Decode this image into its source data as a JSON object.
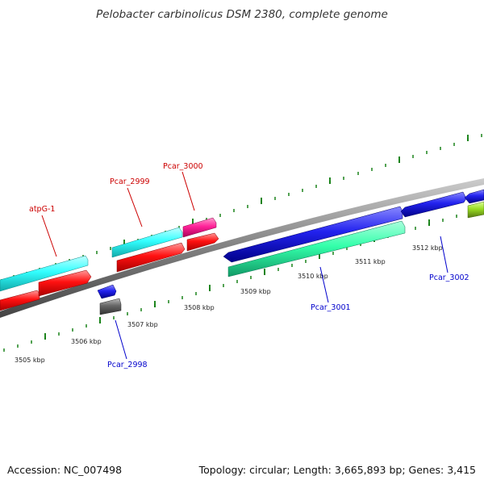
{
  "title": "Pelobacter carbinolicus DSM 2380, complete genome",
  "footer": {
    "accession": "Accession: NC_007498",
    "stats": "Topology: circular; Length: 3,665,893 bp; Genes: 3,415"
  },
  "colors": {
    "backbone": "#808080",
    "tick": "#0a7a0a",
    "forward_label": "#cc0000",
    "reverse_label": "#0000cc",
    "cyan": "#33ffff",
    "red": "#ff1111",
    "magenta": "#ff2299",
    "blue": "#2222ee",
    "gray": "#666666",
    "teal": "#33ffaa",
    "lime": "#99dd22"
  },
  "kbp_ticks": [
    "3505 kbp",
    "3506 kbp",
    "3507 kbp",
    "3508 kbp",
    "3509 kbp",
    "3510 kbp",
    "3511 kbp",
    "3512 kbp"
  ],
  "gene_labels": {
    "atpG_1": "atpG-1",
    "pcar_2999": "Pcar_2999",
    "pcar_3000": "Pcar_3000",
    "pcar_2998": "Pcar_2998",
    "pcar_3001": "Pcar_3001",
    "pcar_3002": "Pcar_3002"
  }
}
